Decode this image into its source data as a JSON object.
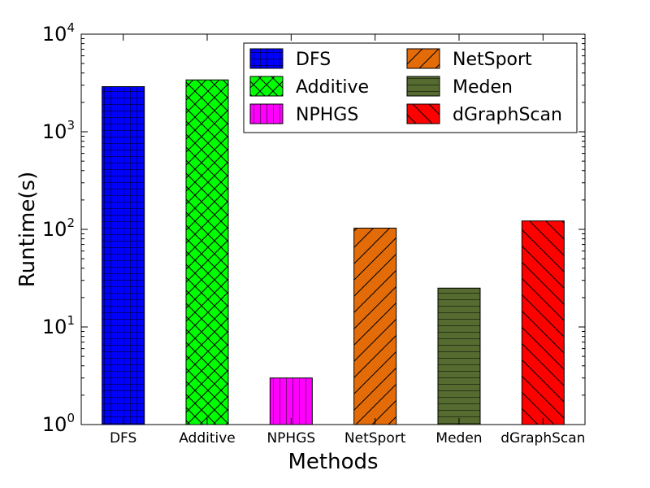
{
  "chart_data": {
    "type": "bar",
    "xlabel": "Methods",
    "ylabel": "Runtime(s)",
    "categories": [
      "DFS",
      "Additive",
      "NPHGS",
      "NetSport",
      "Meden",
      "dGraphScan"
    ],
    "values": [
      2900,
      3400,
      3,
      103,
      25,
      122
    ],
    "yscale": "log",
    "ylim": [
      1,
      10000
    ],
    "ytick_base": "10",
    "yticks_exp": [
      "0",
      "1",
      "2",
      "3",
      "4"
    ],
    "grid": false,
    "legend_placement": "top-right",
    "series": [
      {
        "name": "DFS",
        "color": "#0000ff",
        "hatch": "grid"
      },
      {
        "name": "Additive",
        "color": "#00ff00",
        "hatch": "crosshatch"
      },
      {
        "name": "NPHGS",
        "color": "#ff00ff",
        "hatch": "vertical"
      },
      {
        "name": "NetSport",
        "color": "#e36c09",
        "hatch": "forward-diagonal"
      },
      {
        "name": "Meden",
        "color": "#556b2f",
        "hatch": "horizontal"
      },
      {
        "name": "dGraphScan",
        "color": "#ff0000",
        "hatch": "back-diagonal"
      }
    ]
  }
}
